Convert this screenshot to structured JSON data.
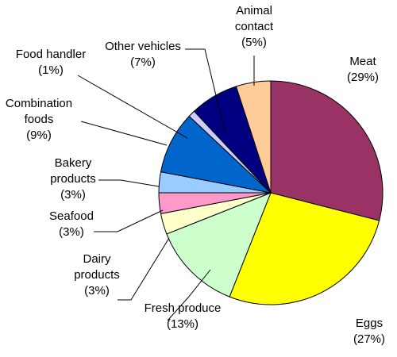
{
  "chart_data": {
    "type": "pie",
    "title": "",
    "slices": [
      {
        "label_lines": [
          "Meat",
          "(29%)"
        ],
        "value": 29,
        "color": "#993366"
      },
      {
        "label_lines": [
          "Eggs",
          "(27%)"
        ],
        "value": 27,
        "color": "#FFFF00"
      },
      {
        "label_lines": [
          "Fresh produce",
          "(13%)"
        ],
        "value": 13,
        "color": "#CCFFCC"
      },
      {
        "label_lines": [
          "Dairy",
          "products",
          "(3%)"
        ],
        "value": 3,
        "color": "#FFFFCC"
      },
      {
        "label_lines": [
          "Seafood",
          "(3%)"
        ],
        "value": 3,
        "color": "#FF99CC"
      },
      {
        "label_lines": [
          "Bakery",
          "products",
          "(3%)"
        ],
        "value": 3,
        "color": "#99CCFF"
      },
      {
        "label_lines": [
          "Combination",
          "foods",
          "(9%)"
        ],
        "value": 9,
        "color": "#0066CC"
      },
      {
        "label_lines": [
          "Food handler",
          "(1%)"
        ],
        "value": 1,
        "color": "#CCCCFF"
      },
      {
        "label_lines": [
          "Other vehicles",
          "(7%)"
        ],
        "value": 7,
        "color": "#000080"
      },
      {
        "label_lines": [
          "Animal",
          "contact",
          "(5%)"
        ],
        "value": 5,
        "color": "#FFCC99"
      }
    ],
    "start_angle_deg": 0,
    "direction": "clockwise-from-top",
    "legend": "none (labels beside slices with leader lines)"
  }
}
